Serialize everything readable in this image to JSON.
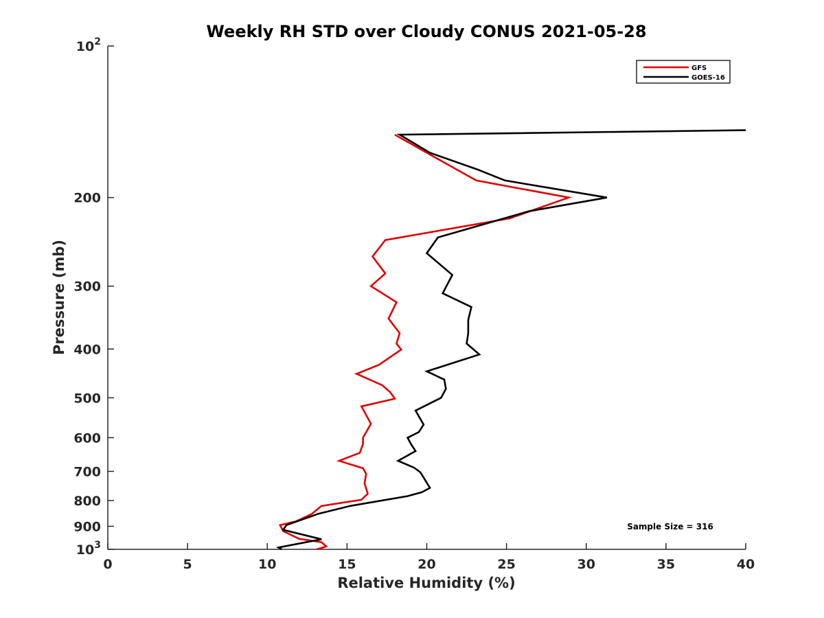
{
  "chart_data": {
    "type": "line",
    "title": "Weekly RH STD over Cloudy CONUS 2021-05-28",
    "xlabel": "Relative Humidity (%)",
    "ylabel": "Pressure (mb)",
    "xlim": [
      0,
      40
    ],
    "ylim": [
      1000,
      100
    ],
    "yscale": "log",
    "y_reversed": true,
    "x_ticks": [
      "0",
      "5",
      "10",
      "15",
      "20",
      "25",
      "30",
      "35",
      "40"
    ],
    "y_ticks": [
      {
        "value": 100,
        "label": "10",
        "sup": "2"
      },
      {
        "value": 200,
        "label": "200",
        "sup": ""
      },
      {
        "value": 300,
        "label": "300",
        "sup": ""
      },
      {
        "value": 400,
        "label": "400",
        "sup": ""
      },
      {
        "value": 500,
        "label": "500",
        "sup": ""
      },
      {
        "value": 600,
        "label": "600",
        "sup": ""
      },
      {
        "value": 700,
        "label": "700",
        "sup": ""
      },
      {
        "value": 800,
        "label": "800",
        "sup": ""
      },
      {
        "value": 900,
        "label": "900",
        "sup": ""
      },
      {
        "value": 1000,
        "label": "10",
        "sup": "3"
      }
    ],
    "grid": false,
    "legend_position": "top-right",
    "annotation": "Sample Size = 316",
    "series": [
      {
        "name": "GFS",
        "color": "#e00000",
        "points": [
          [
            18.0,
            150
          ],
          [
            20.3,
            165
          ],
          [
            23.1,
            185
          ],
          [
            28.9,
            200
          ],
          [
            25.2,
            220
          ],
          [
            17.4,
            243
          ],
          [
            16.6,
            262
          ],
          [
            17.4,
            283
          ],
          [
            16.5,
            300
          ],
          [
            18.1,
            323
          ],
          [
            17.6,
            348
          ],
          [
            18.3,
            372
          ],
          [
            18.1,
            390
          ],
          [
            18.4,
            401
          ],
          [
            17.0,
            430
          ],
          [
            15.6,
            448
          ],
          [
            17.2,
            472
          ],
          [
            17.7,
            487
          ],
          [
            18.0,
            502
          ],
          [
            15.9,
            520
          ],
          [
            16.5,
            563
          ],
          [
            16.0,
            600
          ],
          [
            16.0,
            618
          ],
          [
            15.8,
            643
          ],
          [
            14.5,
            667
          ],
          [
            16.0,
            690
          ],
          [
            16.2,
            708
          ],
          [
            16.1,
            740
          ],
          [
            16.3,
            775
          ],
          [
            15.9,
            797
          ],
          [
            13.4,
            820
          ],
          [
            12.8,
            850
          ],
          [
            11.8,
            880
          ],
          [
            10.8,
            895
          ],
          [
            11.0,
            920
          ],
          [
            12.0,
            953
          ],
          [
            13.4,
            968
          ],
          [
            13.7,
            987
          ],
          [
            13.1,
            1000
          ]
        ]
      },
      {
        "name": "GOES-16",
        "color": "#000000",
        "points": [
          [
            40.0,
            147
          ],
          [
            18.3,
            150
          ],
          [
            20.2,
            163
          ],
          [
            23.2,
            176
          ],
          [
            24.9,
            185
          ],
          [
            31.3,
            200
          ],
          [
            26.4,
            213
          ],
          [
            20.7,
            240
          ],
          [
            20.0,
            258
          ],
          [
            21.6,
            285
          ],
          [
            21.0,
            310
          ],
          [
            22.8,
            330
          ],
          [
            22.6,
            350
          ],
          [
            22.6,
            372
          ],
          [
            22.5,
            390
          ],
          [
            23.3,
            410
          ],
          [
            20.0,
            443
          ],
          [
            21.1,
            460
          ],
          [
            21.2,
            480
          ],
          [
            20.9,
            500
          ],
          [
            19.3,
            530
          ],
          [
            19.8,
            565
          ],
          [
            19.5,
            585
          ],
          [
            18.8,
            600
          ],
          [
            19.0,
            617
          ],
          [
            19.3,
            638
          ],
          [
            18.2,
            667
          ],
          [
            19.2,
            688
          ],
          [
            19.6,
            703
          ],
          [
            20.2,
            755
          ],
          [
            19.7,
            770
          ],
          [
            18.8,
            784
          ],
          [
            15.2,
            820
          ],
          [
            13.2,
            850
          ],
          [
            11.2,
            895
          ],
          [
            11.0,
            915
          ],
          [
            13.4,
            955
          ],
          [
            10.7,
            992
          ],
          [
            10.9,
            1000
          ]
        ]
      }
    ]
  }
}
